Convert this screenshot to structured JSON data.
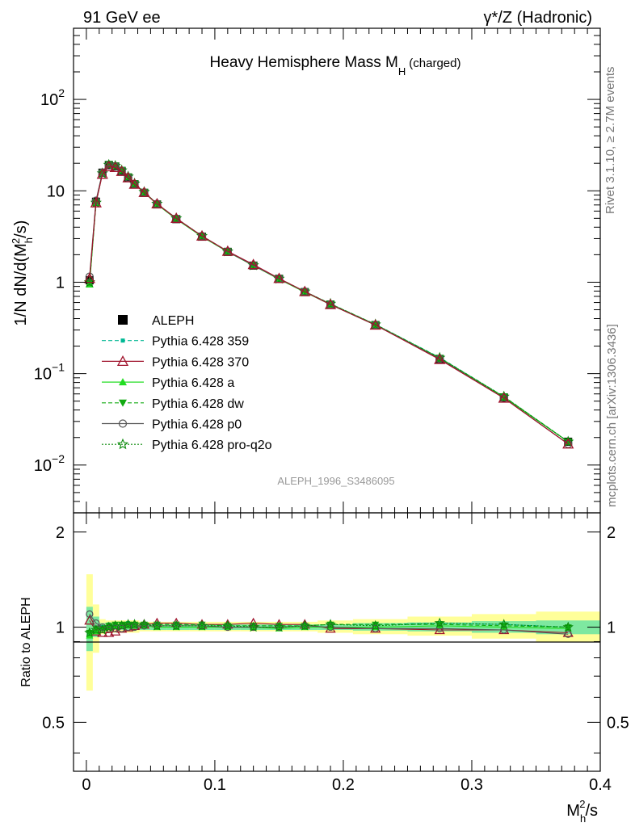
{
  "header": {
    "left": "91 GeV ee",
    "right": "γ*/Z (Hadronic)"
  },
  "side_text": {
    "top": "Rivet 3.1.10, ≥ 2.7M events",
    "bottom": "mcplots.cern.ch [arXiv:1306.3436]"
  },
  "colors": {
    "data": "#000000",
    "p359": "#00b894",
    "p370": "#a0142d",
    "pa": "#22dd22",
    "pdw": "#12aa12",
    "pp0": "#555555",
    "pq2o": "#0a8a0a",
    "band_inner": "#7ee8a0",
    "band_outer": "#ffff99"
  },
  "chart_data": [
    {
      "type": "line",
      "title": "Heavy Hemisphere Mass M",
      "title_sub": "H",
      "title_suffix": "(charged)",
      "ylabel": "1/N dN/d(M",
      "ylabel_sub": "h",
      "ylabel_sup": "2",
      "ylabel_end": "/s)",
      "xlim": [
        -0.01,
        0.4
      ],
      "ylim": [
        0.003,
        600
      ],
      "yscale": "log",
      "watermark": "ALEPH_1996_S3486095",
      "y_ticks": [
        {
          "mantissa": "10",
          "exp": "2",
          "value": 100
        },
        {
          "mantissa": "10",
          "exp": "",
          "value": 10
        },
        {
          "mantissa": "1",
          "exp": "",
          "value": 1
        },
        {
          "mantissa": "10",
          "exp": "−1",
          "value": 0.1
        },
        {
          "mantissa": "10",
          "exp": "−2",
          "value": 0.01
        }
      ],
      "legend_position": "middle-left",
      "x": [
        0.0025,
        0.0075,
        0.0125,
        0.0175,
        0.0225,
        0.0275,
        0.0325,
        0.0375,
        0.045,
        0.055,
        0.07,
        0.09,
        0.11,
        0.13,
        0.15,
        0.17,
        0.19,
        0.225,
        0.275,
        0.325,
        0.375
      ],
      "series": [
        {
          "name": "ALEPH",
          "key": "data",
          "marker": "square",
          "dash": "",
          "values": [
            1.05,
            7.6,
            15.8,
            19.2,
            18.5,
            16.5,
            14.0,
            11.8,
            9.5,
            7.1,
            4.9,
            3.15,
            2.15,
            1.52,
            1.09,
            0.78,
            0.57,
            0.34,
            0.145,
            0.055,
            0.018
          ]
        },
        {
          "name": "Pythia 6.428 359",
          "key": "p359",
          "marker": "smallsquare",
          "dash": "5,3",
          "values": [
            1.0,
            7.5,
            15.9,
            19.6,
            18.9,
            16.8,
            14.4,
            12.0,
            9.7,
            7.2,
            5.0,
            3.2,
            2.18,
            1.54,
            1.1,
            0.79,
            0.58,
            0.345,
            0.15,
            0.056,
            0.018
          ]
        },
        {
          "name": "Pythia 6.428 370",
          "key": "p370",
          "marker": "triangle",
          "dash": "",
          "values": [
            1.1,
            7.4,
            15.2,
            18.4,
            18.0,
            16.3,
            13.9,
            11.8,
            9.6,
            7.2,
            5.0,
            3.2,
            2.18,
            1.56,
            1.1,
            0.79,
            0.57,
            0.34,
            0.143,
            0.054,
            0.017
          ]
        },
        {
          "name": "Pythia 6.428 a",
          "key": "pa",
          "marker": "triangle-filled",
          "dash": "",
          "values": [
            0.95,
            7.4,
            15.6,
            19.3,
            18.8,
            16.7,
            14.2,
            11.9,
            9.6,
            7.1,
            4.9,
            3.15,
            2.15,
            1.52,
            1.08,
            0.78,
            0.57,
            0.34,
            0.147,
            0.055,
            0.018
          ]
        },
        {
          "name": "Pythia 6.428 dw",
          "key": "pdw",
          "marker": "triangle-down",
          "dash": "5,3",
          "values": [
            1.0,
            7.5,
            15.7,
            19.5,
            18.8,
            16.8,
            14.3,
            12.0,
            9.7,
            7.2,
            5.0,
            3.2,
            2.18,
            1.54,
            1.1,
            0.79,
            0.58,
            0.345,
            0.148,
            0.056,
            0.018
          ]
        },
        {
          "name": "Pythia 6.428 p0",
          "key": "pp0",
          "marker": "circle",
          "dash": "",
          "values": [
            1.15,
            7.8,
            15.8,
            19.0,
            18.4,
            16.4,
            14.0,
            11.8,
            9.6,
            7.2,
            4.95,
            3.2,
            2.16,
            1.53,
            1.09,
            0.79,
            0.57,
            0.34,
            0.145,
            0.054,
            0.017
          ]
        },
        {
          "name": "Pythia 6.428 pro-q2o",
          "key": "pq2o",
          "marker": "star",
          "dash": "2,2",
          "values": [
            1.0,
            7.4,
            15.5,
            19.2,
            18.7,
            16.7,
            14.3,
            12.0,
            9.7,
            7.2,
            5.0,
            3.2,
            2.17,
            1.53,
            1.09,
            0.79,
            0.58,
            0.345,
            0.149,
            0.056,
            0.018
          ]
        }
      ]
    },
    {
      "type": "line",
      "ylabel": "Ratio to ALEPH",
      "xlabel": "M",
      "xlabel_sub": "h",
      "xlabel_sup": "2",
      "xlabel_end": "/s",
      "xlim": [
        -0.01,
        0.4
      ],
      "ylim": [
        0.35,
        2.3
      ],
      "x_ticks": [
        "0",
        "0.1",
        "0.2",
        "0.3",
        "0.4"
      ],
      "y_ticks": [
        "0.5",
        "1",
        "2"
      ],
      "reference": 1.0,
      "x": [
        0.0025,
        0.0075,
        0.0125,
        0.0175,
        0.0225,
        0.0275,
        0.0325,
        0.0375,
        0.045,
        0.055,
        0.07,
        0.09,
        0.11,
        0.13,
        0.15,
        0.17,
        0.19,
        0.225,
        0.275,
        0.325,
        0.375
      ],
      "band_inner": [
        [
          0.84,
          1.16
        ],
        [
          0.93,
          1.08
        ],
        [
          0.97,
          1.03
        ],
        [
          0.98,
          1.02
        ],
        [
          0.98,
          1.02
        ],
        [
          0.98,
          1.02
        ],
        [
          0.98,
          1.02
        ],
        [
          0.98,
          1.02
        ],
        [
          0.98,
          1.02
        ],
        [
          0.98,
          1.02
        ],
        [
          0.98,
          1.02
        ],
        [
          0.98,
          1.02
        ],
        [
          0.98,
          1.02
        ],
        [
          0.98,
          1.02
        ],
        [
          0.98,
          1.02
        ],
        [
          0.98,
          1.02
        ],
        [
          0.98,
          1.02
        ],
        [
          0.975,
          1.03
        ],
        [
          0.97,
          1.035
        ],
        [
          0.96,
          1.045
        ],
        [
          0.95,
          1.05
        ]
      ],
      "band_outer": [
        [
          0.63,
          1.47
        ],
        [
          0.83,
          1.18
        ],
        [
          0.95,
          1.06
        ],
        [
          0.96,
          1.05
        ],
        [
          0.96,
          1.05
        ],
        [
          0.96,
          1.05
        ],
        [
          0.96,
          1.05
        ],
        [
          0.96,
          1.05
        ],
        [
          0.97,
          1.04
        ],
        [
          0.97,
          1.04
        ],
        [
          0.97,
          1.04
        ],
        [
          0.97,
          1.04
        ],
        [
          0.97,
          1.04
        ],
        [
          0.97,
          1.04
        ],
        [
          0.97,
          1.04
        ],
        [
          0.97,
          1.04
        ],
        [
          0.96,
          1.05
        ],
        [
          0.95,
          1.06
        ],
        [
          0.94,
          1.08
        ],
        [
          0.92,
          1.1
        ],
        [
          0.9,
          1.12
        ]
      ],
      "series": [
        {
          "key": "p359",
          "marker": "smallsquare",
          "dash": "5,3",
          "values": [
            0.96,
            0.99,
            1.0,
            1.02,
            1.02,
            1.02,
            1.03,
            1.02,
            1.02,
            1.02,
            1.02,
            1.02,
            1.01,
            1.01,
            1.01,
            1.01,
            1.02,
            1.02,
            1.03,
            1.02,
            1.0
          ]
        },
        {
          "key": "p370",
          "marker": "triangle",
          "dash": "",
          "values": [
            1.05,
            0.97,
            0.96,
            0.96,
            0.97,
            0.99,
            1.0,
            1.01,
            1.02,
            1.03,
            1.03,
            1.02,
            1.02,
            1.03,
            1.02,
            1.02,
            0.99,
            0.99,
            0.98,
            0.98,
            0.96
          ]
        },
        {
          "key": "pa",
          "marker": "triangle-filled",
          "dash": "",
          "values": [
            0.94,
            0.97,
            0.99,
            1.0,
            1.01,
            1.01,
            1.01,
            1.01,
            1.01,
            1.0,
            1.0,
            1.0,
            1.0,
            1.0,
            0.99,
            1.0,
            1.0,
            1.0,
            1.01,
            1.0,
            0.99
          ]
        },
        {
          "key": "pdw",
          "marker": "triangle-down",
          "dash": "5,3",
          "values": [
            0.96,
            0.99,
            0.99,
            1.01,
            1.02,
            1.02,
            1.02,
            1.02,
            1.02,
            1.02,
            1.02,
            1.02,
            1.01,
            1.01,
            1.01,
            1.01,
            1.02,
            1.02,
            1.02,
            1.01,
            1.0
          ]
        },
        {
          "key": "pp0",
          "marker": "circle",
          "dash": "",
          "values": [
            1.1,
            1.03,
            1.0,
            0.99,
            0.99,
            0.99,
            1.0,
            1.0,
            1.01,
            1.01,
            1.01,
            1.01,
            1.0,
            1.0,
            1.0,
            1.01,
            1.0,
            0.99,
            0.99,
            0.98,
            0.95
          ]
        },
        {
          "key": "pq2o",
          "marker": "star",
          "dash": "2,2",
          "values": [
            0.96,
            0.98,
            0.98,
            1.0,
            1.01,
            1.01,
            1.02,
            1.02,
            1.02,
            1.01,
            1.01,
            1.01,
            1.01,
            1.0,
            1.0,
            1.01,
            1.02,
            1.01,
            1.03,
            1.02,
            1.0
          ]
        }
      ]
    }
  ]
}
